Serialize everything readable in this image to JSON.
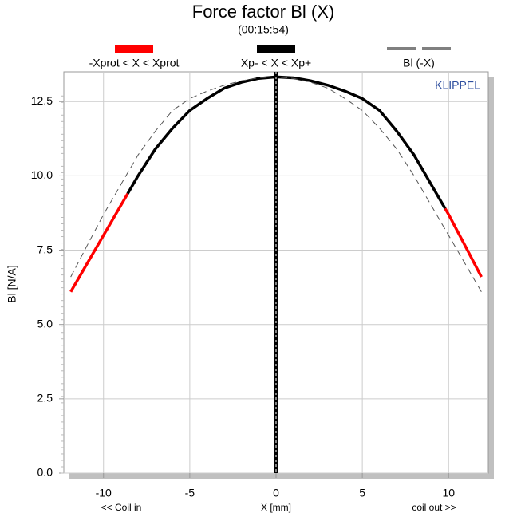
{
  "chart_data": {
    "type": "line",
    "title": "Force factor Bl (X)",
    "subtitle": "(00:15:54)",
    "x_label": "X [mm]",
    "y_label": "Bl [N/A]",
    "annotations": [
      "<< Coil in",
      "coil out >>",
      "KLIPPEL"
    ],
    "x": [
      -11.9,
      -11,
      -10,
      -9.8,
      -9,
      -8.6,
      -8,
      -7,
      -6,
      -5,
      -4,
      -3,
      -2,
      -1,
      0,
      1,
      2,
      3,
      4,
      5,
      6,
      7,
      8,
      8.6,
      9,
      9.8,
      10,
      11,
      11.9
    ],
    "series": [
      {
        "name": "-Xprot < X < Xprot",
        "color": "#ff0000",
        "style": "solid",
        "values": [
          6.1,
          7.0,
          8.0,
          8.2,
          9.0,
          9.4,
          null,
          null,
          null,
          null,
          null,
          null,
          null,
          null,
          null,
          null,
          null,
          null,
          null,
          null,
          null,
          null,
          null,
          null,
          null,
          8.9,
          8.7,
          7.6,
          6.6
        ]
      },
      {
        "name": "Xp- < X < Xp+",
        "color": "#000000",
        "style": "solid",
        "values": [
          null,
          null,
          null,
          null,
          null,
          9.4,
          10.0,
          10.9,
          11.6,
          12.2,
          12.6,
          12.95,
          13.15,
          13.28,
          13.33,
          13.3,
          13.2,
          13.05,
          12.85,
          12.6,
          12.2,
          11.5,
          10.7,
          10.1,
          9.7,
          8.9,
          null,
          null,
          null
        ]
      },
      {
        "name": "Bl (-X)",
        "color": "#808080",
        "style": "dashed",
        "values": [
          6.6,
          7.6,
          8.7,
          8.9,
          9.7,
          10.1,
          10.7,
          11.5,
          12.2,
          12.6,
          12.85,
          13.05,
          13.2,
          13.3,
          13.33,
          13.28,
          13.15,
          12.95,
          12.6,
          12.2,
          11.6,
          10.9,
          10.0,
          9.4,
          9.0,
          8.2,
          8.0,
          7.0,
          6.1
        ]
      }
    ],
    "xlim": [
      -12.3,
      12.3
    ],
    "xticks": [
      -10,
      -5,
      0,
      5,
      10
    ],
    "ylim": [
      0,
      13.5
    ],
    "yticks": [
      {
        "value": 0,
        "label": "0.0"
      },
      2.5,
      {
        "value": 5,
        "label": "5.0"
      },
      7.5,
      {
        "value": 10,
        "label": "10.0"
      },
      12.5
    ],
    "grid": true
  }
}
